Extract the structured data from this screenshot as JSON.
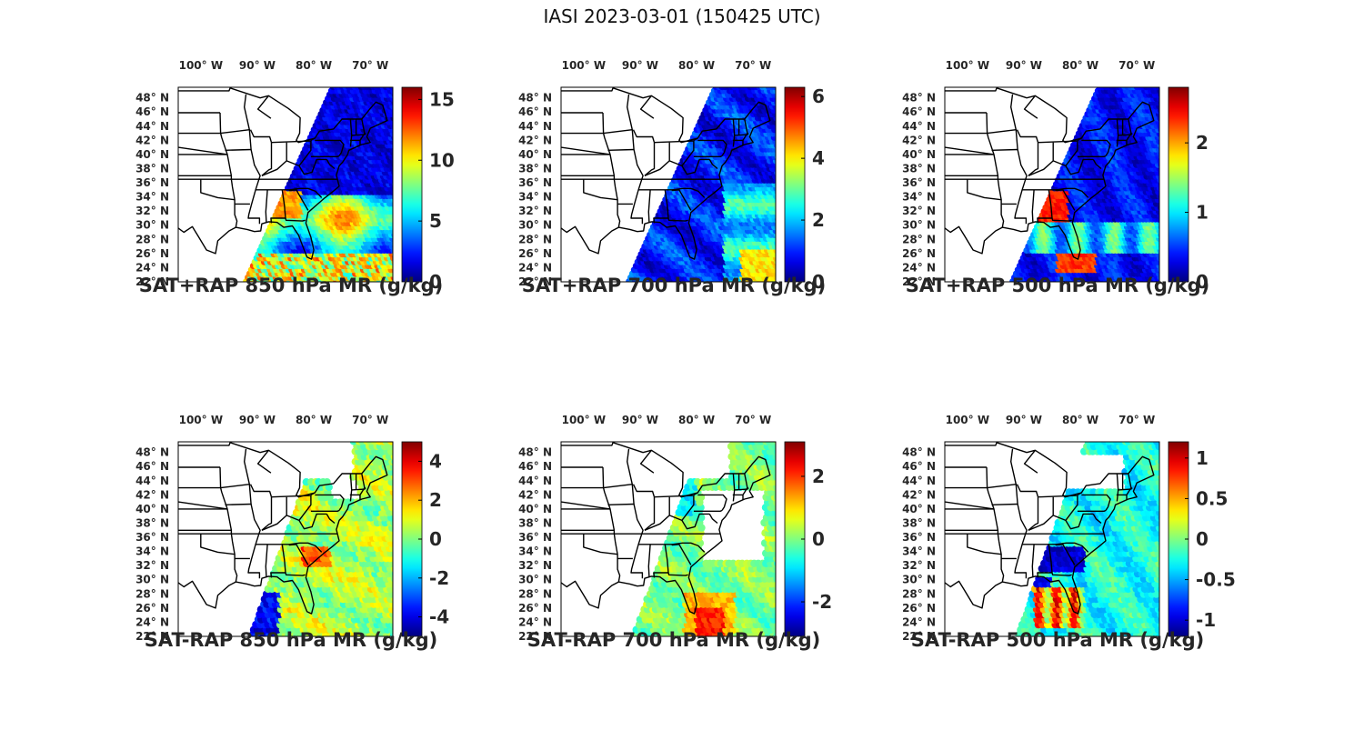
{
  "title": "IASI 2023-03-01 (150425 UTC)",
  "map_axes": {
    "lon_labels": [
      "100° W",
      "90° W",
      "80° W",
      "70° W"
    ],
    "lon_values": [
      -100,
      -90,
      -80,
      -70
    ],
    "lat_labels": [
      "48° N",
      "46° N",
      "44° N",
      "42° N",
      "40° N",
      "38° N",
      "36° N",
      "34° N",
      "32° N",
      "30° N",
      "28° N",
      "26° N",
      "24° N",
      "22° N"
    ],
    "lat_values": [
      48,
      46,
      44,
      42,
      40,
      38,
      36,
      34,
      32,
      30,
      28,
      26,
      24,
      22
    ],
    "lon_range": [
      -104,
      -66
    ],
    "lat_range": [
      22,
      49.5
    ]
  },
  "colormap": "jet",
  "panels": [
    {
      "id": "sat-rap-sum-850",
      "caption": "SAT+RAP 850 hPa MR (g/kg)",
      "type": "sum",
      "colorbar": {
        "min": 0,
        "max": 16,
        "ticks": [
          0,
          5,
          10,
          15
        ],
        "tick_labels": [
          "0",
          "5",
          "10",
          "15"
        ]
      }
    },
    {
      "id": "sat-rap-sum-700",
      "caption": "SAT+RAP 700 hPa MR (g/kg)",
      "type": "sum",
      "colorbar": {
        "min": 0,
        "max": 6.3,
        "ticks": [
          0,
          2,
          4,
          6
        ],
        "tick_labels": [
          "0",
          "2",
          "4",
          "6"
        ]
      }
    },
    {
      "id": "sat-rap-sum-500",
      "caption": "SAT+RAP 500 hPa MR (g/kg)",
      "type": "sum",
      "colorbar": {
        "min": 0,
        "max": 2.8,
        "ticks": [
          0,
          1,
          2
        ],
        "tick_labels": [
          "0",
          "1",
          "2"
        ]
      }
    },
    {
      "id": "sat-rap-diff-850",
      "caption": "SAT-RAP 850 hPa MR (g/kg)",
      "type": "diff",
      "colorbar": {
        "min": -5,
        "max": 5,
        "ticks": [
          -4,
          -2,
          0,
          2,
          4
        ],
        "tick_labels": [
          "-4",
          "-2",
          "0",
          "2",
          "4"
        ]
      }
    },
    {
      "id": "sat-rap-diff-700",
      "caption": "SAT-RAP 700 hPa MR (g/kg)",
      "type": "diff",
      "colorbar": {
        "min": -3.1,
        "max": 3.1,
        "ticks": [
          -2,
          0,
          2
        ],
        "tick_labels": [
          "-2",
          "0",
          "2"
        ]
      }
    },
    {
      "id": "sat-rap-diff-500",
      "caption": "SAT-RAP 500 hPa MR (g/kg)",
      "type": "diff",
      "colorbar": {
        "min": -1.2,
        "max": 1.2,
        "ticks": [
          -1,
          -0.5,
          0,
          0.5,
          1
        ],
        "tick_labels": [
          "-1",
          "-0.5",
          "0",
          "0.5",
          "1"
        ]
      }
    }
  ]
}
